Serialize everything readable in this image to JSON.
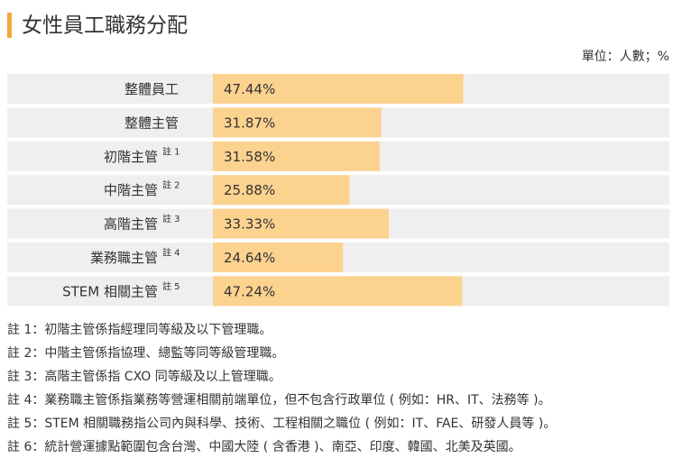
{
  "chart_data": {
    "type": "bar",
    "title": "女性員工職務分配",
    "unit_label": "單位：人數；%",
    "categories": [
      "整體員工",
      "整體主管",
      "初階主管",
      "中階主管",
      "高階主管",
      "業務職主管",
      "STEM 相關主管"
    ],
    "superscripts": [
      null,
      null,
      "註 1",
      "註 2",
      "註 3",
      "註 4",
      "註 5"
    ],
    "values": [
      47.44,
      31.87,
      31.58,
      25.88,
      33.33,
      24.64,
      47.24
    ],
    "value_labels": [
      "47.44%",
      "31.87%",
      "31.58%",
      "25.88%",
      "33.33%",
      "24.64%",
      "47.24%"
    ],
    "color": "#fcd28f",
    "notes": [
      "註 1：初階主管係指經理同等級及以下管理職。",
      "註 2：中階主管係指協理、總監等同等級管理職。",
      "註 3：高階主管係指 CXO 同等級及以上管理職。",
      "註 4：業務職主管係指業務等營運相關前端單位，但不包含行政單位 ( 例如：HR、IT、法務等 )。",
      "註 5：STEM 相關職務指公司內與科學、技術、工程相關之職位 ( 例如：IT、FAE、研發人員等 )。",
      "註 6：統計營運據點範圍包含台灣、中國大陸 ( 含香港 )、南亞、印度、韓國、北美及英國。"
    ]
  }
}
